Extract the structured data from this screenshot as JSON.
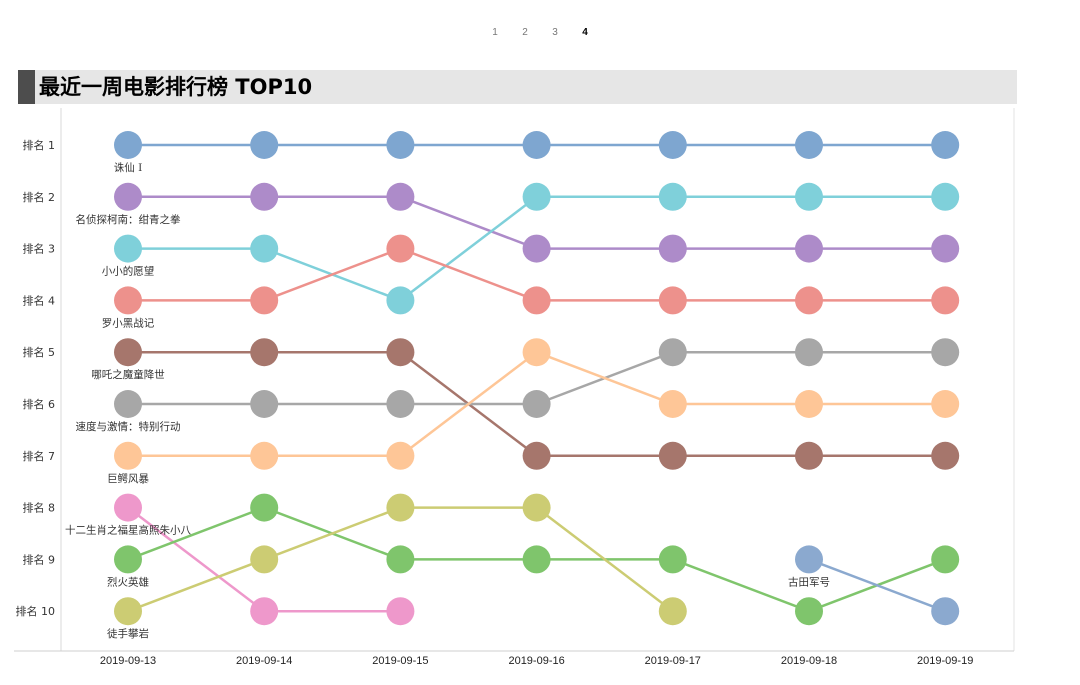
{
  "pagination": {
    "pages": [
      "1",
      "2",
      "3",
      "4"
    ],
    "current": "4"
  },
  "header": {
    "title": "最近一周电影排行榜 TOP10"
  },
  "chart_data": {
    "type": "line",
    "title": "最近一周电影排行榜 TOP10",
    "categories": [
      "2019-09-13",
      "2019-09-14",
      "2019-09-15",
      "2019-09-16",
      "2019-09-17",
      "2019-09-18",
      "2019-09-19"
    ],
    "rank_labels": [
      "排名 1",
      "排名 2",
      "排名 3",
      "排名 4",
      "排名 5",
      "排名 6",
      "排名 7",
      "排名 8",
      "排名 9",
      "排名 10"
    ],
    "ylim": [
      1,
      10
    ],
    "y_inverted": true,
    "series": [
      {
        "name": "诛仙 I",
        "color": "#7ea6d0",
        "ranks": [
          1,
          1,
          1,
          1,
          1,
          1,
          1
        ]
      },
      {
        "name": "名侦探柯南：绀青之拳",
        "color": "#ad8bc9",
        "ranks": [
          2,
          2,
          2,
          3,
          3,
          3,
          3
        ]
      },
      {
        "name": "小小的愿望",
        "color": "#7fd0da",
        "ranks": [
          3,
          3,
          4,
          2,
          2,
          2,
          2
        ]
      },
      {
        "name": "罗小黑战记",
        "color": "#ed918c",
        "ranks": [
          4,
          4,
          3,
          4,
          4,
          4,
          4
        ]
      },
      {
        "name": "哪吒之魔童降世",
        "color": "#a6766c",
        "ranks": [
          5,
          5,
          5,
          7,
          7,
          7,
          7
        ]
      },
      {
        "name": "速度与激情：特别行动",
        "color": "#a7a7a7",
        "ranks": [
          6,
          6,
          6,
          6,
          5,
          5,
          5
        ]
      },
      {
        "name": "巨鳄风暴",
        "color": "#fec697",
        "ranks": [
          7,
          7,
          7,
          5,
          6,
          6,
          6
        ]
      },
      {
        "name": "十二生肖之福星高照朱小八",
        "color": "#ee98cb",
        "ranks": [
          8,
          10,
          10,
          null,
          null,
          null,
          null
        ]
      },
      {
        "name": "烈火英雄",
        "color": "#7fc56c",
        "ranks": [
          9,
          8,
          9,
          9,
          9,
          10,
          9
        ]
      },
      {
        "name": "徒手攀岩",
        "color": "#cccc73",
        "ranks": [
          10,
          9,
          8,
          8,
          10,
          null,
          null
        ]
      },
      {
        "name": "古田军号",
        "color": "#8ba9cf",
        "ranks": [
          null,
          null,
          null,
          null,
          null,
          9,
          10
        ]
      }
    ]
  }
}
